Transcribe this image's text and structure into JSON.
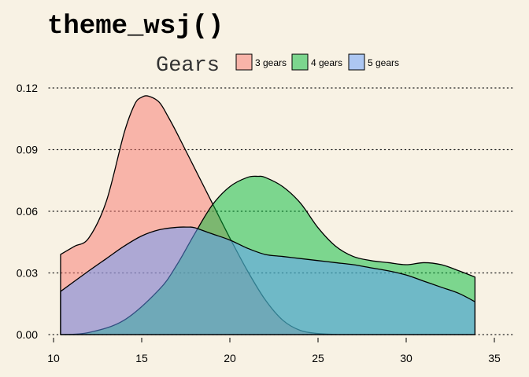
{
  "chart_data": {
    "type": "area",
    "title": "theme_wsj()",
    "legend": {
      "title": "Gears",
      "position": "top",
      "entries": [
        "3 gears",
        "4 gears",
        "5 gears"
      ]
    },
    "xlim": [
      10,
      35
    ],
    "ylim": [
      0,
      0.12
    ],
    "x_ticks": [
      10,
      15,
      20,
      25,
      30,
      35
    ],
    "y_ticks": [
      0.0,
      0.03,
      0.06,
      0.09,
      0.12
    ],
    "x_tick_labels": [
      "10",
      "15",
      "20",
      "25",
      "30",
      "35"
    ],
    "y_tick_labels": [
      "0.00",
      "0.03",
      "0.06",
      "0.09",
      "0.12"
    ],
    "grid": "horizontal dotted",
    "series": [
      {
        "name": "3 gears",
        "color": "#f8766d",
        "x": [
          10.4,
          11.2,
          12.0,
          13.0,
          14.0,
          14.6,
          15.0,
          15.4,
          16.0,
          16.5,
          17.0,
          18.0,
          19.0,
          20.0,
          21.0,
          22.0,
          23.0,
          24.0,
          25.0,
          26.0,
          27.0,
          33.9
        ],
        "y": [
          0.039,
          0.043,
          0.047,
          0.065,
          0.098,
          0.112,
          0.1155,
          0.116,
          0.113,
          0.106,
          0.098,
          0.081,
          0.064,
          0.047,
          0.031,
          0.017,
          0.007,
          0.002,
          0.0005,
          0.0001,
          0.0,
          0.0
        ]
      },
      {
        "name": "4 gears",
        "color": "#00ba38",
        "x": [
          10.4,
          12.0,
          14.0,
          16.0,
          17.0,
          18.0,
          19.0,
          20.0,
          21.0,
          21.6,
          22.0,
          23.0,
          24.0,
          25.0,
          26.0,
          27.0,
          28.0,
          29.0,
          30.0,
          31.0,
          32.0,
          33.0,
          33.9
        ],
        "y": [
          0.0,
          0.001,
          0.007,
          0.022,
          0.034,
          0.049,
          0.063,
          0.072,
          0.0765,
          0.077,
          0.0765,
          0.072,
          0.064,
          0.052,
          0.043,
          0.038,
          0.036,
          0.035,
          0.034,
          0.035,
          0.034,
          0.031,
          0.028
        ]
      },
      {
        "name": "5 gears",
        "color": "#619cff",
        "x": [
          10.4,
          12.0,
          13.0,
          14.0,
          15.0,
          16.0,
          17.0,
          17.6,
          18.0,
          19.0,
          20.0,
          21.0,
          22.0,
          23.0,
          24.0,
          25.0,
          26.0,
          27.0,
          28.0,
          29.0,
          30.0,
          31.0,
          32.0,
          33.0,
          33.9
        ],
        "y": [
          0.021,
          0.031,
          0.037,
          0.043,
          0.048,
          0.051,
          0.0522,
          0.0523,
          0.052,
          0.049,
          0.046,
          0.042,
          0.039,
          0.038,
          0.037,
          0.036,
          0.035,
          0.034,
          0.0325,
          0.031,
          0.029,
          0.026,
          0.023,
          0.02,
          0.016
        ]
      }
    ]
  }
}
